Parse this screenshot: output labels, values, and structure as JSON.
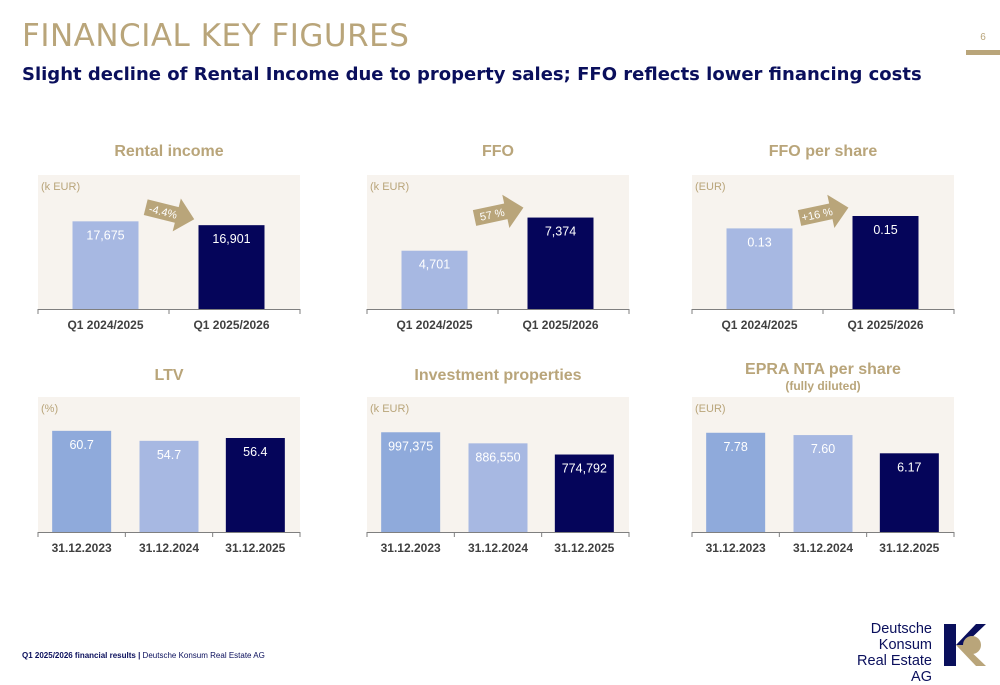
{
  "header": {
    "title": "FINANCIAL KEY FIGURES",
    "subtitle": "Slight decline of Rental Income due to property sales; FFO reflects lower financing costs",
    "page_number": "6"
  },
  "footer": {
    "bold": "Q1 2025/2026 financial results |",
    "text": "Deutsche Konsum Real Estate AG"
  },
  "logo": {
    "lines": [
      "Deutsche",
      "Konsum",
      "Real Estate AG"
    ]
  },
  "colors": {
    "gold": "#b9a57a",
    "navy": "#05055a",
    "light_blue": "#a7b8e2",
    "mid_blue": "#8faadb",
    "panel_bg": "#f7f3ee",
    "axis": "#7f7f7f"
  },
  "chart_data": [
    {
      "id": "rental-income",
      "type": "bar",
      "title": "Rental income",
      "unit": "(k EUR)",
      "categories": [
        "Q1 2024/2025",
        "Q1 2025/2026"
      ],
      "values": [
        17675,
        16901
      ],
      "value_labels": [
        "17,675",
        "16,901"
      ],
      "ylim": [
        0,
        25000
      ],
      "arrow_label": "-4.4%"
    },
    {
      "id": "ffo",
      "type": "bar",
      "title": "FFO",
      "unit": "(k EUR)",
      "categories": [
        "Q1 2024/2025",
        "Q1 2025/2026"
      ],
      "values": [
        4701,
        7374
      ],
      "value_labels": [
        "4,701",
        "7,374"
      ],
      "ylim": [
        0,
        10000
      ],
      "arrow_label": "57 %"
    },
    {
      "id": "ffo-per-share",
      "type": "bar",
      "title": "FFO per share",
      "unit": "(EUR)",
      "categories": [
        "Q1 2024/2025",
        "Q1 2025/2026"
      ],
      "values": [
        0.13,
        0.15
      ],
      "value_labels": [
        "0.13",
        "0.15"
      ],
      "ylim": [
        0,
        0.2
      ],
      "arrow_label": "+16 %"
    },
    {
      "id": "ltv",
      "type": "bar",
      "title": "LTV",
      "unit": "(%)",
      "categories": [
        "31.12.2023",
        "31.12.2024",
        "31.12.2025"
      ],
      "values": [
        60.7,
        54.7,
        56.4
      ],
      "value_labels": [
        "60.7",
        "54.7",
        "56.4"
      ],
      "ylim": [
        0,
        75
      ]
    },
    {
      "id": "investment-properties",
      "type": "bar",
      "title": "Investment properties",
      "unit": "(k EUR)",
      "categories": [
        "31.12.2023",
        "31.12.2024",
        "31.12.2025"
      ],
      "values": [
        997375,
        886550,
        774792
      ],
      "value_labels": [
        "997,375",
        "886,550",
        "774,792"
      ],
      "ylim": [
        0,
        1250000
      ]
    },
    {
      "id": "epra-nta-per-share",
      "type": "bar",
      "title": "EPRA NTA per share",
      "subtitle": "(fully diluted)",
      "unit": "(EUR)",
      "categories": [
        "31.12.2023",
        "31.12.2024",
        "31.12.2025"
      ],
      "values": [
        7.78,
        7.6,
        6.17
      ],
      "value_labels": [
        "7.78",
        "7.60",
        "6.17"
      ],
      "ylim": [
        0,
        9.8
      ]
    }
  ]
}
